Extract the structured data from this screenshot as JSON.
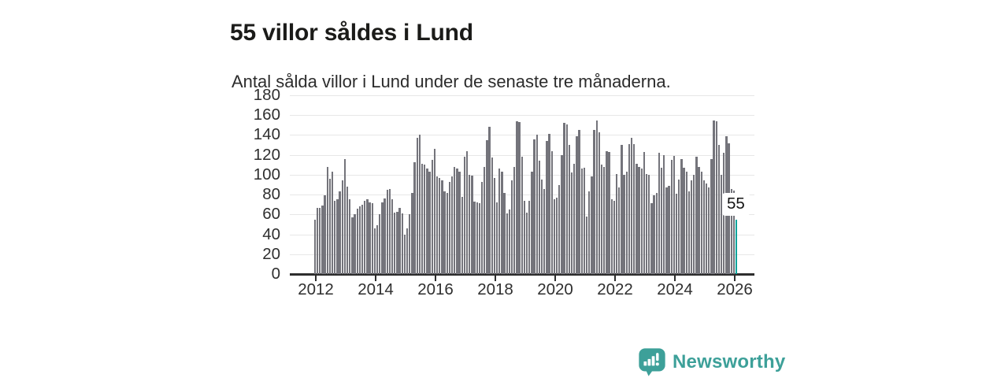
{
  "header": {
    "title": "55 villor såldes i Lund",
    "subtitle": "Antal sålda villor i Lund under de senaste tre månaderna."
  },
  "branding": {
    "name": "Newsworthy",
    "icon": "newsworthy-speech-bubble-chart-icon",
    "color": "#3da099"
  },
  "chart_data": {
    "type": "bar",
    "title": "55 villor såldes i Lund",
    "subtitle": "Antal sålda villor i Lund under de senaste tre månaderna.",
    "frequency": "monthly",
    "x_start": "2011-12",
    "x_end": "2026-01",
    "x_tick_labels": [
      "2012",
      "2014",
      "2016",
      "2018",
      "2020",
      "2022",
      "2024",
      "2026"
    ],
    "y_ticks": [
      0,
      20,
      40,
      60,
      80,
      100,
      120,
      140,
      160,
      180
    ],
    "ylim": [
      0,
      180
    ],
    "grid": true,
    "legend": "none",
    "bar_color": "#74747b",
    "highlight_color": "#00a39b",
    "highlight_index": 169,
    "annotation": {
      "text": "55",
      "target": "last-bar"
    },
    "values": [
      55,
      67,
      67,
      69,
      79,
      108,
      96,
      103,
      74,
      75,
      83,
      94,
      116,
      88,
      75,
      57,
      60,
      66,
      68,
      70,
      74,
      75,
      72,
      71,
      46,
      49,
      60,
      72,
      76,
      85,
      86,
      75,
      62,
      63,
      67,
      61,
      40,
      46,
      60,
      82,
      113,
      137,
      140,
      111,
      110,
      106,
      103,
      115,
      126,
      98,
      97,
      94,
      83,
      82,
      93,
      98,
      108,
      106,
      103,
      78,
      118,
      124,
      100,
      99,
      73,
      72,
      71,
      93,
      108,
      135,
      148,
      117,
      97,
      72,
      106,
      103,
      82,
      61,
      65,
      94,
      108,
      154,
      153,
      118,
      74,
      62,
      74,
      103,
      136,
      140,
      114,
      95,
      86,
      134,
      141,
      124,
      75,
      77,
      90,
      120,
      152,
      151,
      130,
      102,
      111,
      139,
      145,
      106,
      107,
      58,
      83,
      98,
      145,
      155,
      143,
      110,
      108,
      124,
      123,
      75,
      74,
      101,
      87,
      130,
      100,
      103,
      131,
      137,
      131,
      111,
      108,
      106,
      123,
      101,
      100,
      71,
      79,
      82,
      122,
      107,
      120,
      87,
      89,
      115,
      119,
      81,
      95,
      116,
      107,
      103,
      83,
      94,
      100,
      118,
      108,
      103,
      94,
      91,
      87,
      116,
      155,
      154,
      130,
      100,
      122,
      139,
      132,
      86,
      84,
      55
    ]
  }
}
